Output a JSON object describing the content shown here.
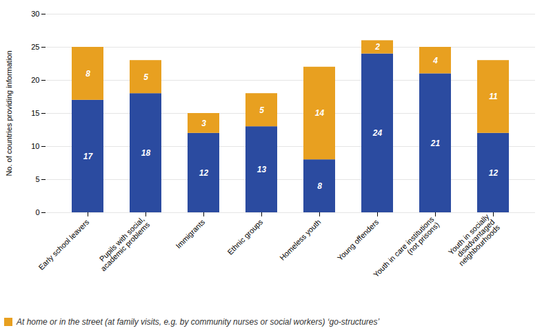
{
  "chart_data": {
    "type": "bar",
    "stacked": true,
    "categories": [
      "Early school leavers",
      "Pupils with social,\nacademic problems",
      "Immigrants",
      "Ethnic groups",
      "Homeless youth",
      "Young offenders",
      "Youth in care institutions\n(not prisons)",
      "Youth in socially\ndisadvantaged\nneighbourhoods"
    ],
    "series": [
      {
        "color": "#2B4BA0",
        "values": [
          17,
          18,
          12,
          13,
          8,
          24,
          21,
          12
        ]
      },
      {
        "name": "At home or in the street (at family visits, e.g. by community nurses or social workers) ‘go-structures’",
        "color": "#E8A020",
        "values": [
          8,
          5,
          3,
          5,
          14,
          2,
          4,
          11
        ]
      }
    ],
    "ylabel": "No. of countries providing information",
    "ylim": [
      0,
      30
    ],
    "yticks": [
      0,
      5,
      10,
      15,
      20,
      25,
      30
    ],
    "grid": true,
    "data_labels": true,
    "legend": "lower left"
  }
}
